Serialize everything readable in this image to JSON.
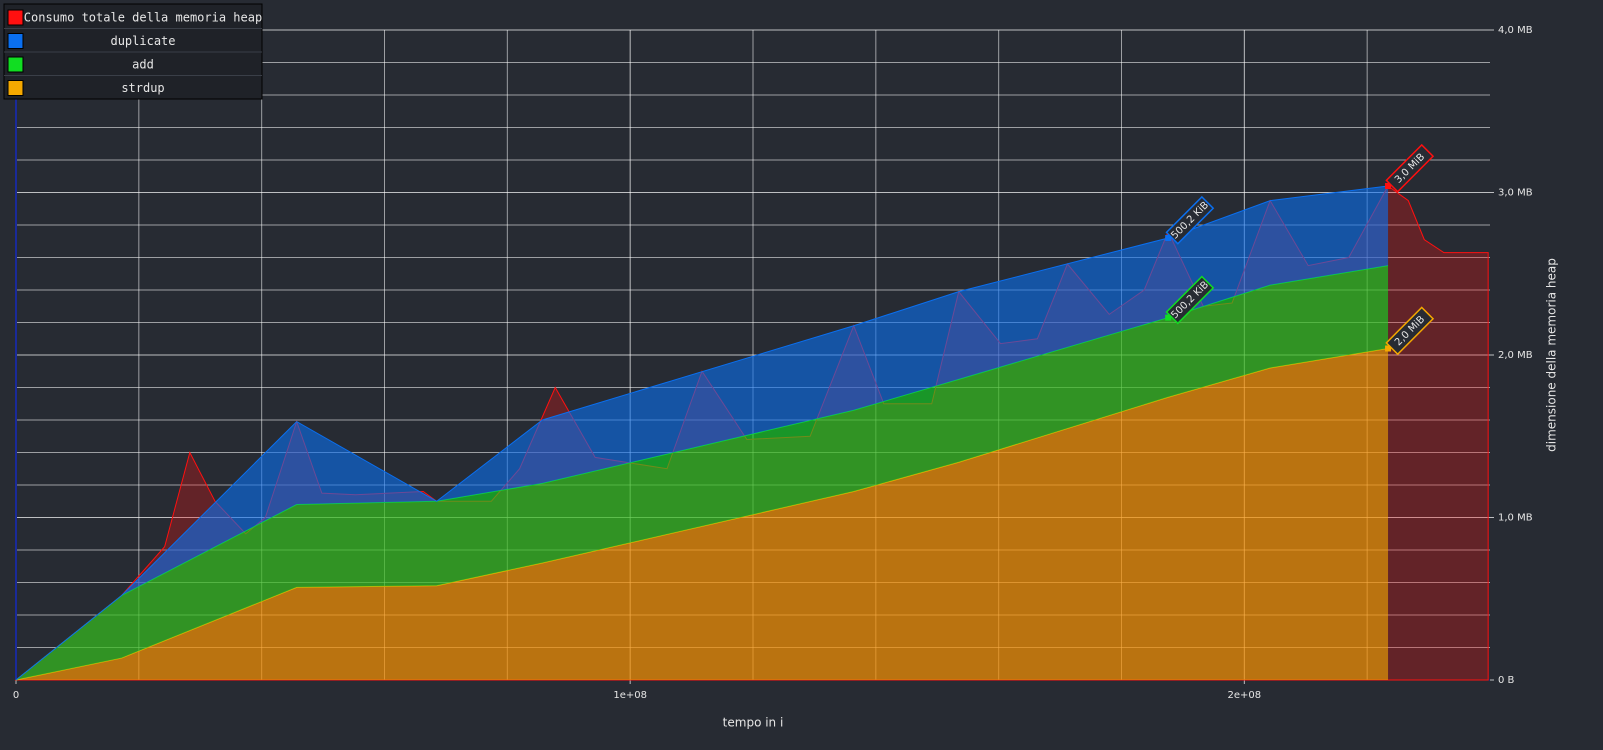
{
  "chart_data": {
    "type": "area",
    "x_label": "tempo in i",
    "y_label": "dimensione della memoria heap",
    "x": [
      0,
      17200000,
      45700000,
      68500000,
      85700000,
      136400000,
      153500000,
      187600000,
      204200000,
      223400000
    ],
    "series": [
      {
        "name": "Consumo totale della memoria heap",
        "color": "#ff1010",
        "stacked": false,
        "x": [
          0,
          17200000,
          24200000,
          28300000,
          32400000,
          37400000,
          40600000,
          45700000,
          49800000,
          55300000,
          66300000,
          68500000,
          77400000,
          82000000,
          87800000,
          94300000,
          106000000,
          111700000,
          119000000,
          129300000,
          136400000,
          141300000,
          149100000,
          153500000,
          160300000,
          166300000,
          171200000,
          178000000,
          183700000,
          187600000,
          193300000,
          198000000,
          204200000,
          210400000,
          217000000,
          223400000,
          226700000,
          229300000,
          232500000,
          239700000
        ],
        "values": [
          0,
          0.52,
          0.82,
          1.4,
          1.1,
          0.9,
          1.0,
          1.59,
          1.15,
          1.14,
          1.16,
          1.1,
          1.1,
          1.3,
          1.8,
          1.37,
          1.3,
          1.9,
          1.48,
          1.5,
          2.18,
          1.7,
          1.7,
          2.39,
          2.07,
          2.1,
          2.56,
          2.25,
          2.4,
          2.76,
          2.3,
          2.32,
          2.95,
          2.55,
          2.6,
          3.04,
          2.95,
          2.71,
          2.63,
          2.63
        ],
        "value_labels": [
          null,
          null,
          null,
          null,
          null,
          null,
          null,
          null,
          null,
          null,
          null,
          null,
          null,
          null,
          null,
          null,
          null,
          null,
          null,
          null,
          null,
          null,
          null,
          null,
          null,
          null,
          null,
          null,
          null,
          null,
          null,
          null,
          null,
          null,
          null,
          "3,0 MiB",
          null,
          null,
          null,
          null
        ]
      },
      {
        "name": "duplicate",
        "color": "#0a6ff0",
        "stacked": true,
        "values": [
          0,
          0,
          0.51,
          0,
          0.39,
          0.52,
          0.54,
          0.49,
          0.52,
          0.49
        ],
        "value_labels": [
          null,
          null,
          null,
          null,
          null,
          null,
          null,
          "500,2 KiB",
          null,
          null
        ]
      },
      {
        "name": "add",
        "color": "#11dd22",
        "stacked": true,
        "values": [
          0,
          0.385,
          0.51,
          0.52,
          0.49,
          0.5,
          0.51,
          0.49,
          0.51,
          0.51
        ],
        "value_labels": [
          null,
          null,
          null,
          null,
          null,
          null,
          null,
          "500,2 KiB",
          null,
          null
        ]
      },
      {
        "name": "strdup",
        "color": "#f5a800",
        "stacked": true,
        "values": [
          0,
          0.135,
          0.57,
          0.58,
          0.72,
          1.16,
          1.34,
          1.74,
          1.92,
          2.04
        ],
        "value_labels": [
          null,
          null,
          null,
          null,
          null,
          null,
          null,
          null,
          null,
          "2,0 MiB"
        ]
      }
    ],
    "xlim": [
      0,
      240000000
    ],
    "xticks": [
      0,
      {
        "value": 100000000,
        "label": "1e+08"
      },
      {
        "value": 200000000,
        "label": "2e+08"
      }
    ],
    "x_minor_ticks": [
      20000000,
      40000000,
      60000000,
      80000000,
      120000000,
      140000000,
      160000000,
      180000000,
      220000000
    ],
    "ylim": [
      0,
      4
    ],
    "yticks": [
      {
        "value": 0,
        "label": "0 B"
      },
      {
        "value": 1,
        "label": "1,0 MB"
      },
      {
        "value": 2,
        "label": "2,0 MB"
      },
      {
        "value": 3,
        "label": "3,0 MB"
      },
      {
        "value": 4,
        "label": "4,0 MB"
      }
    ],
    "y_minor_ticks": [
      0.2,
      0.4,
      0.6,
      0.8,
      1.2,
      1.4,
      1.6,
      1.8,
      2.2,
      2.4,
      2.6,
      2.8,
      3.2,
      3.4,
      3.6,
      3.8
    ],
    "grid": true,
    "legend": "top-left"
  }
}
